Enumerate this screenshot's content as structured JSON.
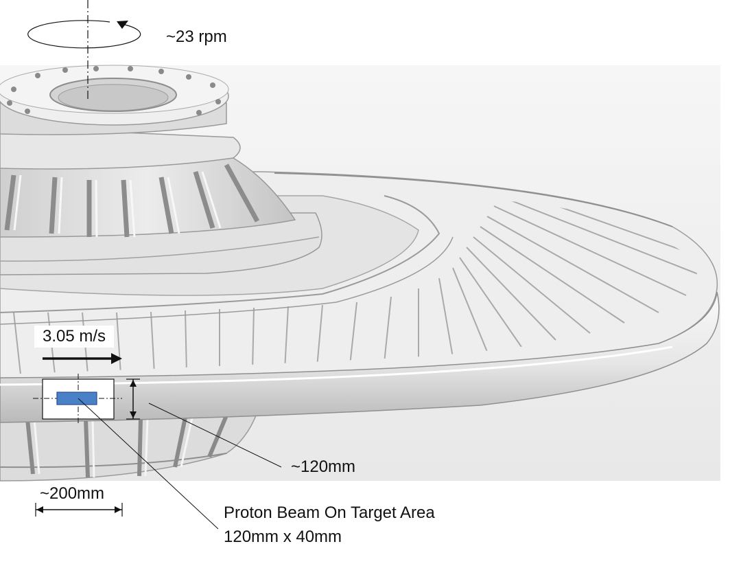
{
  "labels": {
    "rotation": "~23 rpm",
    "velocity": "3.05 m/s",
    "thickness": "~120mm",
    "width": "~200mm",
    "beam_line1": "Proton Beam On Target Area",
    "beam_line2": "120mm x 40mm"
  },
  "colors": {
    "beam": "#4a80c8",
    "beam_stroke": "#2a4f88",
    "metal_light": "#f2f2f2",
    "metal_mid": "#d9d9d9",
    "metal_dark": "#a8a8a8",
    "line": "#111111"
  }
}
